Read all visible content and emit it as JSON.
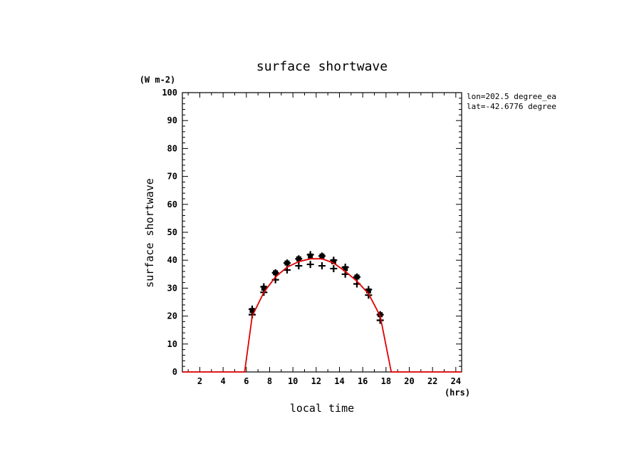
{
  "chart_data": {
    "type": "scatter",
    "title": "surface shortwave",
    "xlabel": "local time",
    "ylabel": "surface shortwave",
    "y_units": "(W m-2)",
    "x_units": "(hrs)",
    "xlim": [
      0.5,
      24.5
    ],
    "ylim": [
      0,
      100
    ],
    "x_ticks": [
      2,
      4,
      6,
      8,
      10,
      12,
      14,
      16,
      18,
      20,
      22,
      24
    ],
    "y_ticks": [
      0,
      10,
      20,
      30,
      40,
      50,
      60,
      70,
      80,
      90,
      100
    ],
    "grid": false,
    "annotations": [
      "lon=202.5 degree_ea",
      "lat=-42.6776 degree"
    ],
    "series": [
      {
        "marker": "plus",
        "color": "#000000",
        "points": [
          [
            6.5,
            20.5
          ],
          [
            6.5,
            22.5
          ],
          [
            7.5,
            28.5
          ],
          [
            7.5,
            30.5
          ],
          [
            8.5,
            33.0
          ],
          [
            8.5,
            35.5
          ],
          [
            9.5,
            36.5
          ],
          [
            9.5,
            39.0
          ],
          [
            10.5,
            38.0
          ],
          [
            10.5,
            40.5
          ],
          [
            11.5,
            38.5
          ],
          [
            11.5,
            42.0
          ],
          [
            12.5,
            38.0
          ],
          [
            12.5,
            41.5
          ],
          [
            13.5,
            37.0
          ],
          [
            13.5,
            40.0
          ],
          [
            14.5,
            35.0
          ],
          [
            14.5,
            37.5
          ],
          [
            15.5,
            31.5
          ],
          [
            15.5,
            34.0
          ],
          [
            16.5,
            27.5
          ],
          [
            16.5,
            29.5
          ],
          [
            17.5,
            18.5
          ],
          [
            17.5,
            20.5
          ]
        ]
      },
      {
        "marker": "square",
        "color": "#000000",
        "points": [
          [
            6.5,
            22.0
          ],
          [
            7.5,
            30.0
          ],
          [
            8.5,
            35.5
          ],
          [
            9.5,
            39.0
          ],
          [
            10.5,
            40.5
          ],
          [
            11.5,
            41.5
          ],
          [
            12.5,
            41.5
          ],
          [
            13.5,
            39.5
          ],
          [
            14.5,
            37.0
          ],
          [
            15.5,
            34.0
          ],
          [
            16.5,
            29.0
          ],
          [
            17.5,
            20.5
          ]
        ]
      },
      {
        "marker": "line",
        "color": "#e00000",
        "points": [
          [
            0.5,
            0
          ],
          [
            1.5,
            0
          ],
          [
            2.5,
            0
          ],
          [
            3.5,
            0
          ],
          [
            4.5,
            0
          ],
          [
            5.5,
            0
          ],
          [
            5.85,
            0
          ],
          [
            6.5,
            20.0
          ],
          [
            7.5,
            28.5
          ],
          [
            8.5,
            34.0
          ],
          [
            9.5,
            37.5
          ],
          [
            10.5,
            39.5
          ],
          [
            11.5,
            40.5
          ],
          [
            12.5,
            40.5
          ],
          [
            13.5,
            39.0
          ],
          [
            14.5,
            36.0
          ],
          [
            15.5,
            32.5
          ],
          [
            16.5,
            28.0
          ],
          [
            17.5,
            20.0
          ],
          [
            18.45,
            0
          ],
          [
            19.5,
            0
          ],
          [
            20.5,
            0
          ],
          [
            21.5,
            0
          ],
          [
            22.5,
            0
          ],
          [
            23.5,
            0
          ],
          [
            24.5,
            0
          ]
        ]
      }
    ]
  }
}
